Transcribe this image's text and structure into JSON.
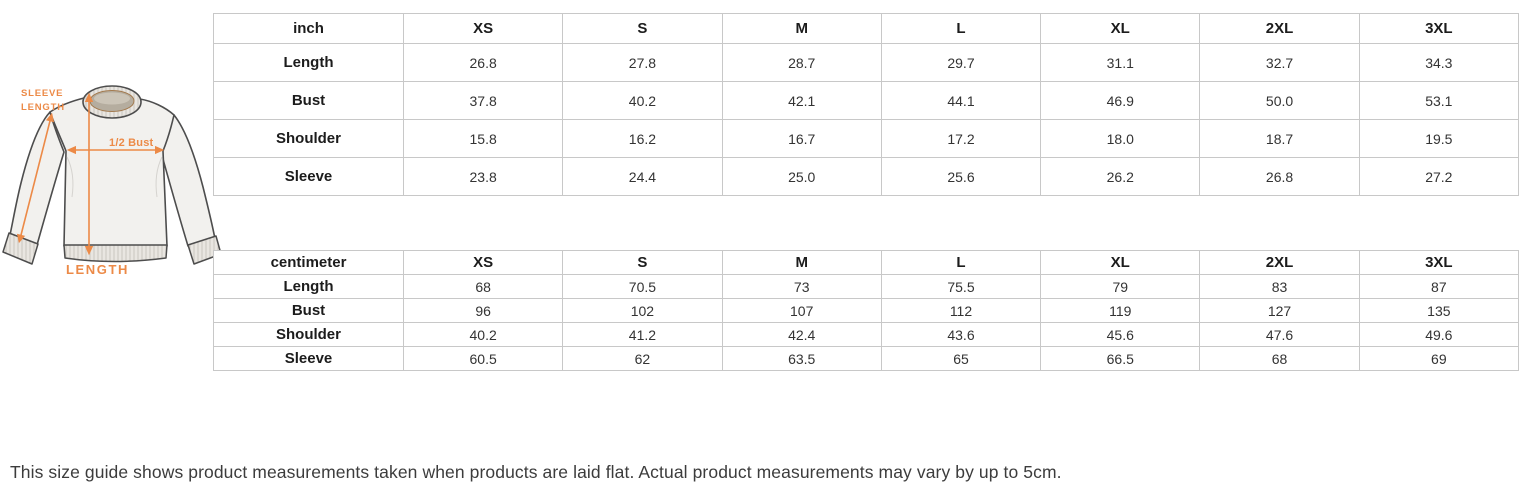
{
  "diagram": {
    "accent_color": "#ec8a47",
    "labels": {
      "sleeve_line1": "SLEEVE",
      "sleeve_line2": "LENGTH",
      "half_bust": "1/2 Bust",
      "length": "LENGTH"
    }
  },
  "chart_data": [
    {
      "type": "table",
      "title": "inch",
      "columns": [
        "XS",
        "S",
        "M",
        "L",
        "XL",
        "2XL",
        "3XL"
      ],
      "rows": [
        {
          "label": "Length",
          "values": [
            "26.8",
            "27.8",
            "28.7",
            "29.7",
            "31.1",
            "32.7",
            "34.3"
          ]
        },
        {
          "label": "Bust",
          "values": [
            "37.8",
            "40.2",
            "42.1",
            "44.1",
            "46.9",
            "50.0",
            "53.1"
          ]
        },
        {
          "label": "Shoulder",
          "values": [
            "15.8",
            "16.2",
            "16.7",
            "17.2",
            "18.0",
            "18.7",
            "19.5"
          ]
        },
        {
          "label": "Sleeve",
          "values": [
            "23.8",
            "24.4",
            "25.0",
            "25.6",
            "26.2",
            "26.8",
            "27.2"
          ]
        }
      ]
    },
    {
      "type": "table",
      "title": "centimeter",
      "columns": [
        "XS",
        "S",
        "M",
        "L",
        "XL",
        "2XL",
        "3XL"
      ],
      "rows": [
        {
          "label": "Length",
          "values": [
            "68",
            "70.5",
            "73",
            "75.5",
            "79",
            "83",
            "87"
          ]
        },
        {
          "label": "Bust",
          "values": [
            "96",
            "102",
            "107",
            "112",
            "119",
            "127",
            "135"
          ]
        },
        {
          "label": "Shoulder",
          "values": [
            "40.2",
            "41.2",
            "42.4",
            "43.6",
            "45.6",
            "47.6",
            "49.6"
          ]
        },
        {
          "label": "Sleeve",
          "values": [
            "60.5",
            "62",
            "63.5",
            "65",
            "66.5",
            "68",
            "69"
          ]
        }
      ]
    }
  ],
  "note": "This size guide shows product measurements taken when products are laid flat. Actual product measurements may vary by up to 5cm."
}
